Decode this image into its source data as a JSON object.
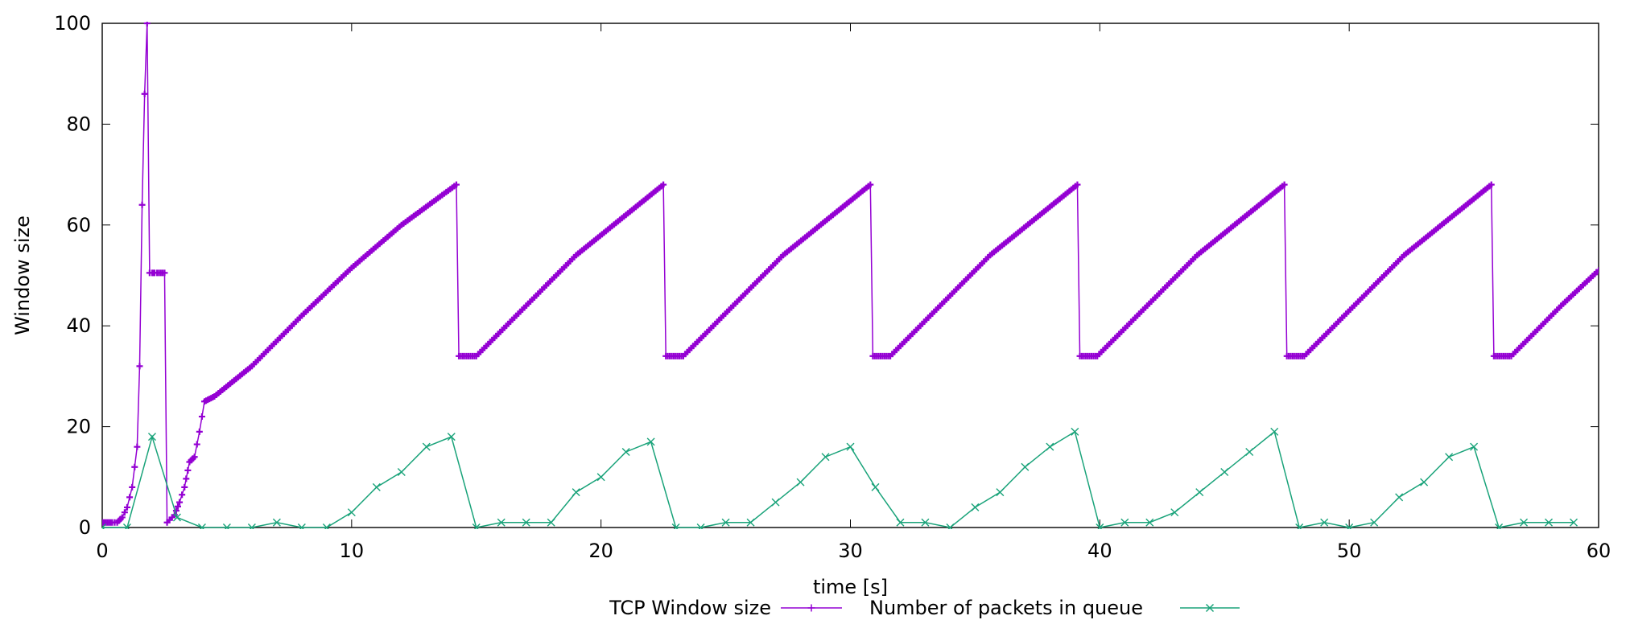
{
  "chart_data": {
    "type": "line",
    "title": "",
    "xlabel": "time [s]",
    "ylabel": "Window size",
    "xlim": [
      0,
      60
    ],
    "ylim": [
      0,
      100
    ],
    "xticks": [
      0,
      10,
      20,
      30,
      40,
      50,
      60
    ],
    "yticks": [
      0,
      20,
      40,
      60,
      80,
      100
    ],
    "grid": false,
    "legend_position": "bottom-center",
    "series": [
      {
        "name": "TCP Window size",
        "color": "#9400d3",
        "marker": "plus",
        "x": [
          0.0,
          0.2,
          0.4,
          0.6,
          0.8,
          1.0,
          1.2,
          1.4,
          1.5,
          1.6,
          1.7,
          1.8,
          1.9,
          2.0,
          2.05,
          2.1,
          2.2,
          2.5,
          2.6,
          2.7,
          2.9,
          3.1,
          3.3,
          3.5,
          3.7,
          3.9,
          4.0,
          4.1,
          4.3,
          4.5,
          6.0,
          8.0,
          10.0,
          12.0,
          14.2,
          14.3,
          15.0,
          17.0,
          19.0,
          21.0,
          22.5,
          22.6,
          23.3,
          25.3,
          27.3,
          29.3,
          30.8,
          30.9,
          31.6,
          33.6,
          35.6,
          37.6,
          39.1,
          39.2,
          39.9,
          41.9,
          43.9,
          45.9,
          47.4,
          47.5,
          48.2,
          50.2,
          52.2,
          54.2,
          55.7,
          55.8,
          56.5,
          58.5,
          60.0
        ],
        "values": [
          1,
          1,
          1,
          1,
          2,
          4,
          8,
          16,
          32,
          64,
          86,
          100,
          50.5,
          50.5,
          50.5,
          50.5,
          50.5,
          50.5,
          1,
          1.5,
          2.5,
          5,
          8,
          13,
          14,
          19,
          22,
          25,
          25.5,
          26,
          32,
          42,
          51.5,
          60,
          68,
          34,
          34,
          44,
          54,
          62,
          68,
          34,
          34,
          44,
          54,
          62,
          68,
          34,
          34,
          44,
          54,
          62,
          68,
          34,
          34,
          44,
          54,
          62,
          68,
          34,
          34,
          44,
          54,
          62,
          68,
          34,
          34,
          44,
          51
        ]
      },
      {
        "name": "Number of packets in queue",
        "color": "#1aa37a",
        "marker": "x",
        "x": [
          0,
          1,
          2,
          3,
          4,
          5,
          6,
          7,
          8,
          9,
          10,
          11,
          12,
          13,
          14,
          15,
          16,
          17,
          18,
          19,
          20,
          21,
          22,
          23,
          24,
          25,
          26,
          27,
          28,
          29,
          30,
          31,
          32,
          33,
          34,
          35,
          36,
          37,
          38,
          39,
          40,
          41,
          42,
          43,
          44,
          45,
          46,
          47,
          48,
          49,
          50,
          51,
          52,
          53,
          54,
          55,
          56,
          57,
          58,
          59
        ],
        "values": [
          0,
          0,
          18,
          2,
          0,
          0,
          0,
          1,
          0,
          0,
          3,
          8,
          11,
          16,
          18,
          0,
          1,
          1,
          1,
          7,
          10,
          15,
          17,
          0,
          0,
          1,
          1,
          5,
          9,
          14,
          16,
          8,
          1,
          1,
          0,
          4,
          7,
          12,
          16,
          19,
          0,
          1,
          1,
          3,
          7,
          11,
          15,
          19,
          0,
          1,
          0,
          1,
          6,
          9,
          14,
          16,
          0,
          1,
          1,
          1
        ]
      }
    ]
  }
}
